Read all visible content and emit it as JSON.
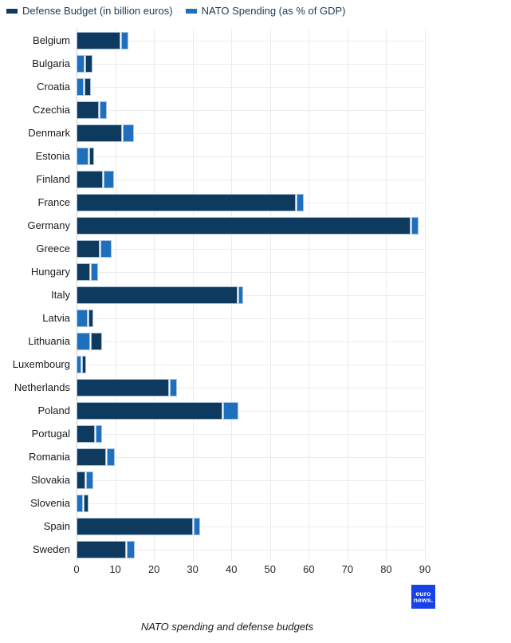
{
  "legend": {
    "items": [
      {
        "name": "defense",
        "label": "Defense Budget (in billion euros)",
        "color": "#0e3a5f"
      },
      {
        "name": "nato",
        "label": "NATO Spending (as % of GDP)",
        "color": "#1e70bf"
      }
    ]
  },
  "chart_data": {
    "type": "bar",
    "orientation": "horizontal",
    "stacked": true,
    "caption": "NATO spending and defense budgets",
    "xlim": [
      0,
      90
    ],
    "x_ticks": [
      0,
      10,
      20,
      30,
      40,
      50,
      60,
      70,
      80,
      90
    ],
    "grid": true,
    "legend_position": "top",
    "series": [
      {
        "key": "defense",
        "name": "Defense Budget (in billion euros)",
        "color": "#0e3a5f"
      },
      {
        "key": "nato",
        "name": "NATO Spending (as % of GDP)",
        "color": "#1e70bf"
      }
    ],
    "rows": [
      {
        "country": "Belgium",
        "defense": 11.6,
        "nato": 2.0,
        "stack_order": [
          "defense",
          "nato"
        ]
      },
      {
        "country": "Bulgaria",
        "defense": 2.1,
        "nato": 2.2,
        "stack_order": [
          "nato",
          "defense"
        ]
      },
      {
        "country": "Croatia",
        "defense": 1.9,
        "nato": 2.1,
        "stack_order": [
          "nato",
          "defense"
        ]
      },
      {
        "country": "Czechia",
        "defense": 5.9,
        "nato": 2.1,
        "stack_order": [
          "defense",
          "nato"
        ]
      },
      {
        "country": "Denmark",
        "defense": 12.0,
        "nato": 3.0,
        "stack_order": [
          "defense",
          "nato"
        ]
      },
      {
        "country": "Estonia",
        "defense": 1.6,
        "nato": 3.2,
        "stack_order": [
          "nato",
          "defense"
        ]
      },
      {
        "country": "Finland",
        "defense": 7.0,
        "nato": 2.8,
        "stack_order": [
          "defense",
          "nato"
        ]
      },
      {
        "country": "France",
        "defense": 56.8,
        "nato": 2.1,
        "stack_order": [
          "defense",
          "nato"
        ]
      },
      {
        "country": "Germany",
        "defense": 86.5,
        "nato": 2.1,
        "stack_order": [
          "defense",
          "nato"
        ]
      },
      {
        "country": "Greece",
        "defense": 6.2,
        "nato": 3.1,
        "stack_order": [
          "defense",
          "nato"
        ]
      },
      {
        "country": "Hungary",
        "defense": 3.7,
        "nato": 2.1,
        "stack_order": [
          "defense",
          "nato"
        ]
      },
      {
        "country": "Italy",
        "defense": 41.8,
        "nato": 1.5,
        "stack_order": [
          "defense",
          "nato"
        ]
      },
      {
        "country": "Latvia",
        "defense": 1.5,
        "nato": 3.1,
        "stack_order": [
          "nato",
          "defense"
        ]
      },
      {
        "country": "Lithuania",
        "defense": 3.2,
        "nato": 3.7,
        "stack_order": [
          "nato",
          "defense"
        ]
      },
      {
        "country": "Luxembourg",
        "defense": 1.2,
        "nato": 1.5,
        "stack_order": [
          "nato",
          "defense"
        ]
      },
      {
        "country": "Netherlands",
        "defense": 24.1,
        "nato": 2.0,
        "stack_order": [
          "defense",
          "nato"
        ]
      },
      {
        "country": "Poland",
        "defense": 37.9,
        "nato": 4.1,
        "stack_order": [
          "defense",
          "nato"
        ]
      },
      {
        "country": "Portugal",
        "defense": 5.0,
        "nato": 1.8,
        "stack_order": [
          "defense",
          "nato"
        ]
      },
      {
        "country": "Romania",
        "defense": 7.8,
        "nato": 2.2,
        "stack_order": [
          "defense",
          "nato"
        ]
      },
      {
        "country": "Slovakia",
        "defense": 2.4,
        "nato": 2.1,
        "stack_order": [
          "defense",
          "nato"
        ]
      },
      {
        "country": "Slovenia",
        "defense": 1.5,
        "nato": 1.8,
        "stack_order": [
          "nato",
          "defense"
        ]
      },
      {
        "country": "Spain",
        "defense": 30.3,
        "nato": 1.9,
        "stack_order": [
          "defense",
          "nato"
        ]
      },
      {
        "country": "Sweden",
        "defense": 12.9,
        "nato": 2.4,
        "stack_order": [
          "defense",
          "nato"
        ]
      }
    ]
  },
  "branding": {
    "logo_line1": "euro",
    "logo_line2": "news.",
    "logo_color": "#1742e8"
  },
  "colors": {
    "defense_bar": "#0e3a5f",
    "nato_bar": "#1e70bf",
    "gridline": "#ebebeb",
    "axis_line": "#d2d2d2",
    "segment_halo": "#b7cde0"
  }
}
